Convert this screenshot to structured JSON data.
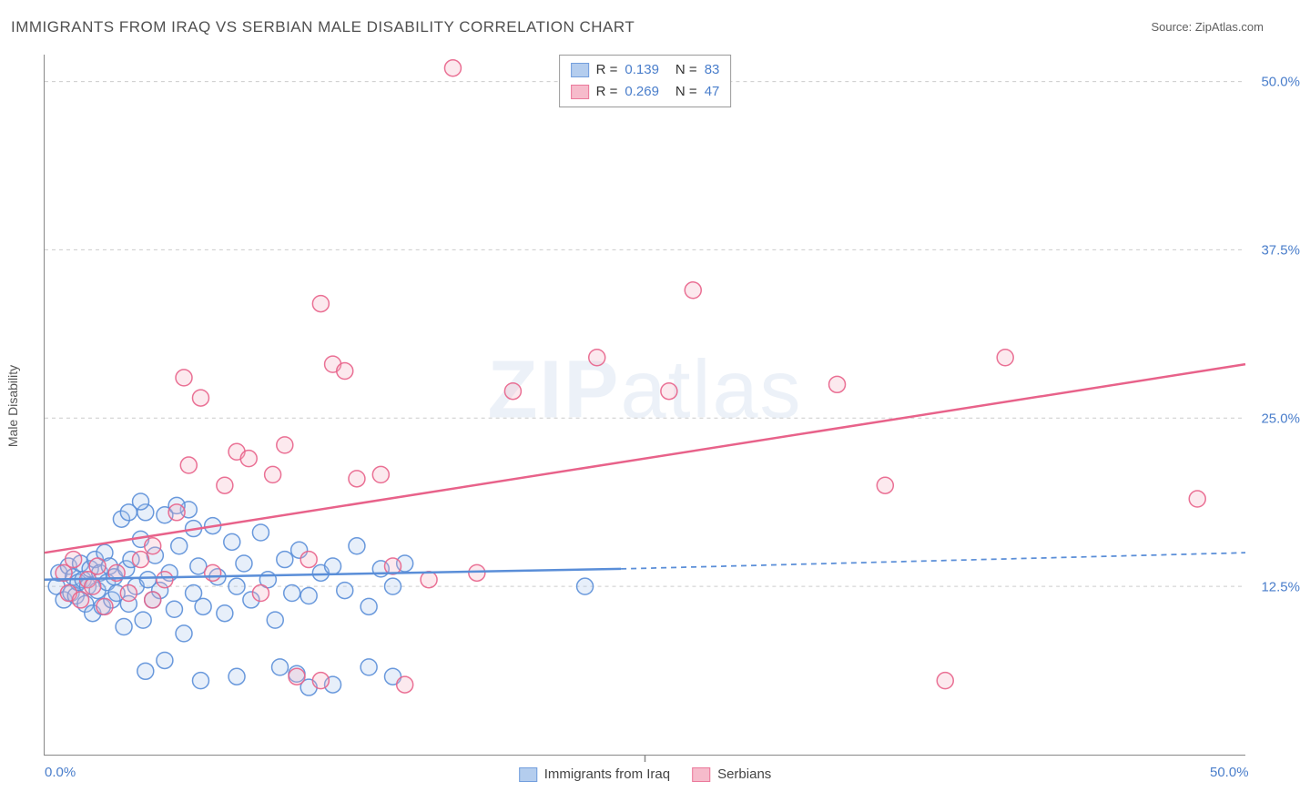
{
  "title": "IMMIGRANTS FROM IRAQ VS SERBIAN MALE DISABILITY CORRELATION CHART",
  "source_label": "Source: ",
  "source_name": "ZipAtlas.com",
  "y_axis_label": "Male Disability",
  "watermark_prefix": "ZIP",
  "watermark_suffix": "atlas",
  "chart": {
    "type": "scatter",
    "xlim": [
      0,
      50
    ],
    "ylim": [
      0,
      52
    ],
    "x_ticks": [
      {
        "value": 0,
        "label": "0.0%"
      },
      {
        "value": 50,
        "label": "50.0%"
      }
    ],
    "y_ticks": [
      {
        "value": 12.5,
        "label": "12.5%"
      },
      {
        "value": 25.0,
        "label": "25.0%"
      },
      {
        "value": 37.5,
        "label": "37.5%"
      },
      {
        "value": 50.0,
        "label": "50.0%"
      }
    ],
    "x_center_tick": 25,
    "background_color": "#ffffff",
    "grid_color": "#cccccc",
    "marker_radius": 9,
    "marker_fill_opacity": 0.28,
    "marker_stroke_opacity": 0.9,
    "marker_stroke_width": 1.5,
    "line_width": 2.5,
    "dash_pattern": "6 5"
  },
  "series": [
    {
      "name": "Immigrants from Iraq",
      "color": "#5a8ed8",
      "fill": "#a8c5ec",
      "R_label": "R = ",
      "R": "0.139",
      "N_label": "N = ",
      "N": "83",
      "regression": {
        "x1": 0,
        "y1": 13.0,
        "x2": 24,
        "y2": 13.8,
        "dash_x2": 50,
        "dash_y2": 15.0
      },
      "points": [
        [
          0.5,
          12.5
        ],
        [
          0.6,
          13.5
        ],
        [
          0.8,
          11.5
        ],
        [
          1.0,
          14.0
        ],
        [
          1.1,
          12.0
        ],
        [
          1.2,
          13.2
        ],
        [
          1.3,
          11.8
        ],
        [
          1.4,
          12.8
        ],
        [
          1.5,
          14.2
        ],
        [
          1.6,
          13.0
        ],
        [
          1.7,
          11.2
        ],
        [
          1.8,
          12.5
        ],
        [
          1.9,
          13.8
        ],
        [
          2.0,
          10.5
        ],
        [
          2.1,
          14.5
        ],
        [
          2.2,
          12.2
        ],
        [
          2.3,
          13.5
        ],
        [
          2.4,
          11.0
        ],
        [
          2.5,
          15.0
        ],
        [
          2.6,
          12.8
        ],
        [
          2.7,
          14.0
        ],
        [
          2.8,
          11.5
        ],
        [
          2.9,
          13.2
        ],
        [
          3.0,
          12.0
        ],
        [
          3.2,
          17.5
        ],
        [
          3.3,
          9.5
        ],
        [
          3.4,
          13.8
        ],
        [
          3.5,
          11.2
        ],
        [
          3.6,
          14.5
        ],
        [
          3.8,
          12.5
        ],
        [
          4.0,
          16.0
        ],
        [
          4.1,
          10.0
        ],
        [
          4.2,
          18.0
        ],
        [
          4.3,
          13.0
        ],
        [
          4.5,
          11.5
        ],
        [
          4.6,
          14.8
        ],
        [
          4.8,
          12.2
        ],
        [
          5.0,
          17.8
        ],
        [
          5.2,
          13.5
        ],
        [
          5.4,
          10.8
        ],
        [
          5.6,
          15.5
        ],
        [
          5.8,
          9.0
        ],
        [
          6.0,
          18.2
        ],
        [
          6.2,
          12.0
        ],
        [
          6.4,
          14.0
        ],
        [
          6.6,
          11.0
        ],
        [
          7.0,
          17.0
        ],
        [
          7.2,
          13.2
        ],
        [
          7.5,
          10.5
        ],
        [
          7.8,
          15.8
        ],
        [
          8.0,
          12.5
        ],
        [
          8.3,
          14.2
        ],
        [
          8.6,
          11.5
        ],
        [
          9.0,
          16.5
        ],
        [
          9.3,
          13.0
        ],
        [
          9.6,
          10.0
        ],
        [
          10.0,
          14.5
        ],
        [
          10.3,
          12.0
        ],
        [
          10.6,
          15.2
        ],
        [
          11.0,
          11.8
        ],
        [
          11.5,
          13.5
        ],
        [
          12.0,
          14.0
        ],
        [
          12.5,
          12.2
        ],
        [
          13.0,
          15.5
        ],
        [
          13.5,
          11.0
        ],
        [
          14.0,
          13.8
        ],
        [
          14.5,
          12.5
        ],
        [
          15.0,
          14.2
        ],
        [
          13.5,
          6.5
        ],
        [
          12.0,
          5.2
        ],
        [
          10.5,
          6.0
        ],
        [
          5.0,
          7.0
        ],
        [
          6.5,
          5.5
        ],
        [
          4.2,
          6.2
        ],
        [
          5.5,
          18.5
        ],
        [
          6.2,
          16.8
        ],
        [
          4.0,
          18.8
        ],
        [
          3.5,
          18.0
        ],
        [
          22.5,
          12.5
        ],
        [
          14.5,
          5.8
        ],
        [
          9.8,
          6.5
        ],
        [
          11.0,
          5.0
        ],
        [
          8.0,
          5.8
        ]
      ]
    },
    {
      "name": "Serbians",
      "color": "#e8628a",
      "fill": "#f5b0c3",
      "R_label": "R = ",
      "R": "0.269",
      "N_label": "N = ",
      "N": "47",
      "regression": {
        "x1": 0,
        "y1": 15.0,
        "x2": 50,
        "y2": 29.0,
        "dash_x2": null,
        "dash_y2": null
      },
      "points": [
        [
          0.8,
          13.5
        ],
        [
          1.0,
          12.0
        ],
        [
          1.2,
          14.5
        ],
        [
          1.5,
          11.5
        ],
        [
          1.8,
          13.0
        ],
        [
          2.0,
          12.5
        ],
        [
          2.2,
          14.0
        ],
        [
          2.5,
          11.0
        ],
        [
          3.0,
          13.5
        ],
        [
          3.5,
          12.0
        ],
        [
          4.0,
          14.5
        ],
        [
          4.5,
          11.5
        ],
        [
          5.0,
          13.0
        ],
        [
          5.5,
          18.0
        ],
        [
          6.0,
          21.5
        ],
        [
          7.5,
          20.0
        ],
        [
          5.8,
          28.0
        ],
        [
          8.0,
          22.5
        ],
        [
          9.5,
          20.8
        ],
        [
          10.0,
          23.0
        ],
        [
          12.0,
          29.0
        ],
        [
          11.5,
          33.5
        ],
        [
          12.5,
          28.5
        ],
        [
          17.0,
          51.0
        ],
        [
          23.0,
          29.5
        ],
        [
          27.0,
          34.5
        ],
        [
          35.0,
          20.0
        ],
        [
          40.0,
          29.5
        ],
        [
          13.0,
          20.5
        ],
        [
          8.5,
          22.0
        ],
        [
          6.5,
          26.5
        ],
        [
          26.0,
          27.0
        ],
        [
          10.5,
          5.8
        ],
        [
          11.5,
          5.5
        ],
        [
          15.0,
          5.2
        ],
        [
          37.5,
          5.5
        ],
        [
          14.5,
          14.0
        ],
        [
          16.0,
          13.0
        ],
        [
          9.0,
          12.0
        ],
        [
          14.0,
          20.8
        ],
        [
          11.0,
          14.5
        ],
        [
          7.0,
          13.5
        ],
        [
          4.5,
          15.5
        ],
        [
          48.0,
          19.0
        ],
        [
          33.0,
          27.5
        ],
        [
          19.5,
          27.0
        ],
        [
          18.0,
          13.5
        ]
      ]
    }
  ]
}
